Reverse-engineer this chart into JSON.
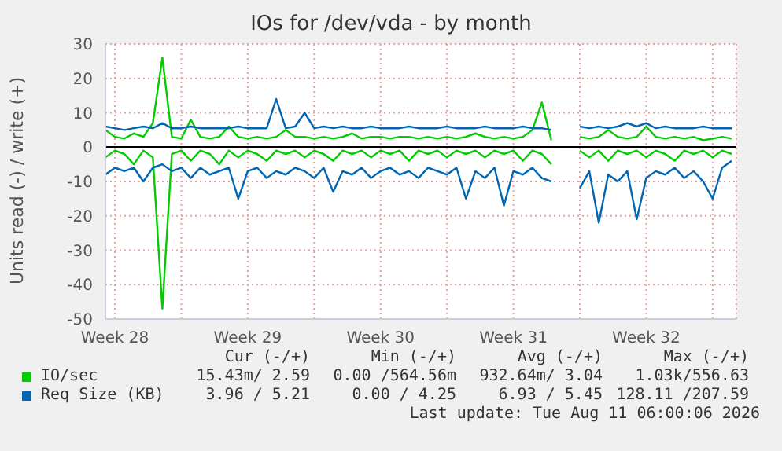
{
  "chart_data": {
    "type": "line",
    "title": "IOs for /dev/vda - by month",
    "ylabel": "Units read (-) / write (+)",
    "x": [
      "2026-07-09T00:00",
      "2026-07-09T12:00",
      "2026-07-10T00:00",
      "2026-07-10T12:00",
      "2026-07-11T00:00",
      "2026-07-11T12:00",
      "2026-07-12T00:00",
      "2026-07-12T12:00",
      "2026-07-13T00:00",
      "2026-07-13T12:00",
      "2026-07-14T00:00",
      "2026-07-14T12:00",
      "2026-07-15T00:00",
      "2026-07-15T12:00",
      "2026-07-16T00:00",
      "2026-07-16T12:00",
      "2026-07-17T00:00",
      "2026-07-17T12:00",
      "2026-07-18T00:00",
      "2026-07-18T12:00",
      "2026-07-19T00:00",
      "2026-07-19T12:00",
      "2026-07-20T00:00",
      "2026-07-20T12:00",
      "2026-07-21T00:00",
      "2026-07-21T12:00",
      "2026-07-22T00:00",
      "2026-07-22T12:00",
      "2026-07-23T00:00",
      "2026-07-23T12:00",
      "2026-07-24T00:00",
      "2026-07-24T12:00",
      "2026-07-25T00:00",
      "2026-07-25T12:00",
      "2026-07-26T00:00",
      "2026-07-26T12:00",
      "2026-07-27T00:00",
      "2026-07-27T12:00",
      "2026-07-28T00:00",
      "2026-07-28T12:00",
      "2026-07-29T00:00",
      "2026-07-29T12:00",
      "2026-07-30T00:00",
      "2026-07-30T12:00",
      "2026-07-31T00:00",
      "2026-07-31T12:00",
      "2026-08-01T00:00",
      "2026-08-01T12:00",
      "2026-08-02T00:00",
      "2026-08-02T12:00",
      "2026-08-03T00:00",
      "2026-08-03T12:00",
      "2026-08-04T00:00",
      "2026-08-04T12:00",
      "2026-08-05T00:00",
      "2026-08-05T12:00",
      "2026-08-06T00:00",
      "2026-08-06T12:00",
      "2026-08-07T00:00",
      "2026-08-07T12:00",
      "2026-08-08T00:00",
      "2026-08-08T12:00",
      "2026-08-09T00:00",
      "2026-08-09T12:00",
      "2026-08-10T00:00",
      "2026-08-10T12:00",
      "2026-08-11T00:00"
    ],
    "series": [
      {
        "name": "IO/sec",
        "color": "#00cc00",
        "values": [
          5,
          3,
          2.5,
          4,
          3,
          7,
          26,
          3,
          2.5,
          8,
          3,
          2.5,
          3,
          6,
          3,
          2.5,
          3,
          2.5,
          3,
          5,
          3,
          3,
          2.5,
          3,
          2.5,
          3,
          4,
          2.5,
          3,
          3,
          2.5,
          3,
          3,
          2.5,
          3,
          2.5,
          3,
          2.5,
          3,
          4,
          3,
          2.5,
          3,
          2.5,
          3,
          5,
          13,
          2,
          null,
          null,
          3,
          2.5,
          3,
          5,
          3,
          2.5,
          3,
          6,
          3,
          2.5,
          3,
          2.5,
          3,
          2,
          2.5,
          3,
          2.5
        ]
      },
      {
        "color": "#00cc00",
        "values": [
          -3,
          -1,
          -2,
          -5,
          -1,
          -3,
          -47,
          -2,
          -1,
          -4,
          -1,
          -2,
          -5,
          -1,
          -3,
          -1,
          -2,
          -4,
          -1,
          -2,
          -1,
          -3,
          -1,
          -2,
          -4,
          -1,
          -2,
          -1,
          -3,
          -1,
          -2,
          -1,
          -4,
          -1,
          -2,
          -1,
          -3,
          -1,
          -2,
          -1,
          -3,
          -1,
          -2,
          -1,
          -4,
          -1,
          -2,
          -5,
          null,
          null,
          -1,
          -3,
          -1,
          -4,
          -1,
          -2,
          -1,
          -3,
          -1,
          -2,
          -4,
          -1,
          -2,
          -1,
          -3,
          -1,
          -2
        ]
      },
      {
        "name": "Req Size (KB)",
        "color": "#0066b3",
        "values": [
          6,
          5.5,
          5,
          5.5,
          6,
          5.5,
          7,
          5.5,
          5.5,
          6,
          5.5,
          5.5,
          5.5,
          5.5,
          6,
          5.5,
          5.5,
          5.5,
          14,
          5.5,
          6,
          10,
          5.5,
          6,
          5.5,
          6,
          5.5,
          5.5,
          6,
          5.5,
          5.5,
          5.5,
          6,
          5.5,
          5.5,
          5.5,
          6,
          5.5,
          5.5,
          5.5,
          6,
          5.5,
          5.5,
          5.5,
          6,
          5.5,
          5.5,
          5,
          null,
          null,
          6,
          5.5,
          6,
          5.5,
          6,
          7,
          6,
          7,
          5.5,
          6,
          5.5,
          5.5,
          5.5,
          6,
          5.5,
          5.5,
          5.5
        ]
      },
      {
        "color": "#0066b3",
        "values": [
          -8,
          -6,
          -7,
          -6,
          -10,
          -6,
          -5,
          -7,
          -6,
          -9,
          -6,
          -8,
          -7,
          -6,
          -15,
          -7,
          -6,
          -9,
          -7,
          -8,
          -6,
          -7,
          -9,
          -6,
          -13,
          -7,
          -8,
          -6,
          -9,
          -7,
          -6,
          -8,
          -7,
          -9,
          -6,
          -7,
          -8,
          -6,
          -15,
          -7,
          -9,
          -6,
          -17,
          -7,
          -8,
          -6,
          -9,
          -10,
          null,
          null,
          -12,
          -7,
          -22,
          -8,
          -10,
          -7,
          -21,
          -9,
          -7,
          -8,
          -6,
          -9,
          -7,
          -10,
          -15,
          -6,
          -4
        ]
      }
    ],
    "xlim": [
      "2026-07-09T00:00",
      "2026-08-11T06:00"
    ],
    "xticks": [
      {
        "value": "2026-07-09T12:00",
        "label": "Week 28"
      },
      {
        "value": "2026-07-13T00:00",
        "label": null
      },
      {
        "value": "2026-07-16T12:00",
        "label": "Week 29"
      },
      {
        "value": "2026-07-20T00:00",
        "label": null
      },
      {
        "value": "2026-07-23T12:00",
        "label": "Week 30"
      },
      {
        "value": "2026-07-27T00:00",
        "label": null
      },
      {
        "value": "2026-07-30T12:00",
        "label": "Week 31"
      },
      {
        "value": "2026-08-03T00:00",
        "label": null
      },
      {
        "value": "2026-08-06T12:00",
        "label": "Week 32"
      },
      {
        "value": "2026-08-10T00:00",
        "label": null
      }
    ],
    "ylim": [
      -50,
      30
    ],
    "yticks": [
      -50,
      -40,
      -30,
      -20,
      -10,
      0,
      10,
      20,
      30
    ],
    "ref_lines": [
      {
        "axis": "y",
        "value": 0,
        "color": "#000000"
      }
    ],
    "grid": true,
    "legend": "bottom",
    "marker": "none",
    "line_style": "solid",
    "annotations": [
      "Cur (-/+)",
      "Min (-/+)",
      "Avg (-/+)",
      "Max (-/+)",
      "15.43m/ 2.59",
      "0.00 /564.56m",
      "932.64m/ 3.04",
      "1.03k/556.63",
      "3.96 / 5.21",
      "0.00 / 4.25",
      "6.93 / 5.45",
      "128.11 /207.59",
      "Last update: Tue Aug 11 06:00:06 2026"
    ]
  }
}
